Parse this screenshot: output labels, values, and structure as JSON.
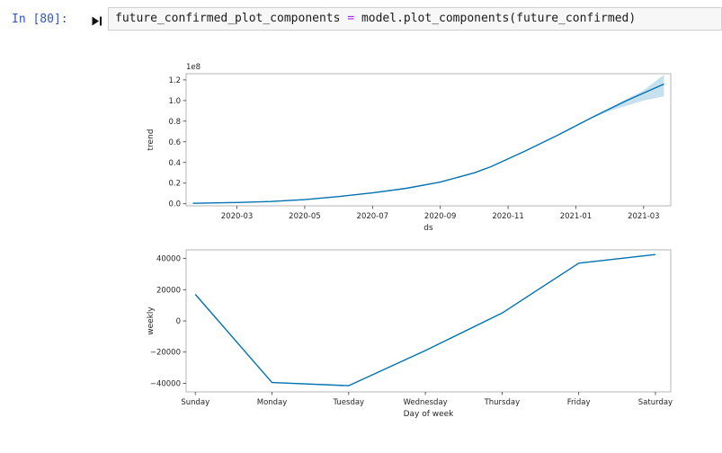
{
  "notebook": {
    "prompt": "In [80]:",
    "code": {
      "lhs": "future_confirmed_plot_components",
      "op": "=",
      "rhs": "model.plot_components(future_confirmed)"
    }
  },
  "colors": {
    "prompt_blue": "#3352c5",
    "operator_purple": "#AA22FF",
    "cell_background": "#f7f7f7",
    "cell_border": "#cfcfcf",
    "plot_line_blue": "#0072B2"
  },
  "chart_data": [
    {
      "type": "line",
      "name": "trend-component",
      "title": "",
      "xlabel": "ds",
      "ylabel": "trend",
      "offset_label": "1e8",
      "grid": false,
      "legend": "none",
      "xlim": [
        0.5,
        14.8
      ],
      "ylim": [
        -0.02,
        1.26
      ],
      "x_unit": "months since 2020-01",
      "y_unit": "1e8",
      "x_ticks": [
        {
          "v": 2,
          "label": "2020-03"
        },
        {
          "v": 4,
          "label": "2020-05"
        },
        {
          "v": 6,
          "label": "2020-07"
        },
        {
          "v": 8,
          "label": "2020-09"
        },
        {
          "v": 10,
          "label": "2020-11"
        },
        {
          "v": 12,
          "label": "2021-01"
        },
        {
          "v": 14,
          "label": "2021-03"
        }
      ],
      "y_ticks": [
        {
          "v": 0.0,
          "label": "0.0"
        },
        {
          "v": 0.2,
          "label": "0.2"
        },
        {
          "v": 0.4,
          "label": "0.4"
        },
        {
          "v": 0.6,
          "label": "0.6"
        },
        {
          "v": 0.8,
          "label": "0.8"
        },
        {
          "v": 1.0,
          "label": "1.0"
        },
        {
          "v": 1.2,
          "label": "1.2"
        }
      ],
      "series": [
        {
          "name": "trend",
          "x": [
            0.7,
            2,
            3,
            4,
            5,
            6,
            7,
            8,
            9,
            9.5,
            10.5,
            11.5,
            12.5,
            13.5,
            14.6
          ],
          "y": [
            0.004,
            0.012,
            0.022,
            0.04,
            0.07,
            0.105,
            0.15,
            0.21,
            0.3,
            0.36,
            0.51,
            0.67,
            0.84,
            1.0,
            1.16
          ]
        }
      ],
      "band": {
        "name": "uncertainty-interval",
        "x": [
          12.2,
          13.0,
          14.0,
          14.6
        ],
        "lower": [
          0.79,
          0.9,
          1.0,
          1.04
        ],
        "upper": [
          0.79,
          0.93,
          1.1,
          1.25
        ]
      },
      "colors": {
        "line": "#0072B2",
        "band": "#0072B2",
        "frame": "#b7b7b7",
        "tick": "#3a3a3a",
        "text": "#262626"
      }
    },
    {
      "type": "line",
      "name": "weekly-component",
      "title": "",
      "xlabel": "Day of week",
      "ylabel": "weekly",
      "grid": false,
      "legend": "none",
      "xlim": [
        -0.12,
        6.2
      ],
      "ylim": [
        -45500,
        45500
      ],
      "categories": [
        "Sunday",
        "Monday",
        "Tuesday",
        "Wednesday",
        "Thursday",
        "Friday",
        "Saturday"
      ],
      "values": [
        17000,
        -39500,
        -41500,
        -19000,
        5000,
        37000,
        42500
      ],
      "x_ticks": [
        {
          "v": 0,
          "label": "Sunday"
        },
        {
          "v": 1,
          "label": "Monday"
        },
        {
          "v": 2,
          "label": "Tuesday"
        },
        {
          "v": 3,
          "label": "Wednesday"
        },
        {
          "v": 4,
          "label": "Thursday"
        },
        {
          "v": 5,
          "label": "Friday"
        },
        {
          "v": 6,
          "label": "Saturday"
        }
      ],
      "y_ticks": [
        {
          "v": -40000,
          "label": "−40000"
        },
        {
          "v": -20000,
          "label": "−20000"
        },
        {
          "v": 0,
          "label": "0"
        },
        {
          "v": 20000,
          "label": "20000"
        },
        {
          "v": 40000,
          "label": "40000"
        }
      ],
      "series": [
        {
          "name": "weekly",
          "x": [
            0,
            1,
            2,
            3,
            4,
            5,
            6
          ],
          "y": [
            17000,
            -39500,
            -41500,
            -19000,
            5000,
            37000,
            42500
          ]
        }
      ],
      "colors": {
        "line": "#0072B2",
        "band": "#0072B2",
        "frame": "#b7b7b7",
        "tick": "#3a3a3a",
        "text": "#262626"
      }
    }
  ]
}
